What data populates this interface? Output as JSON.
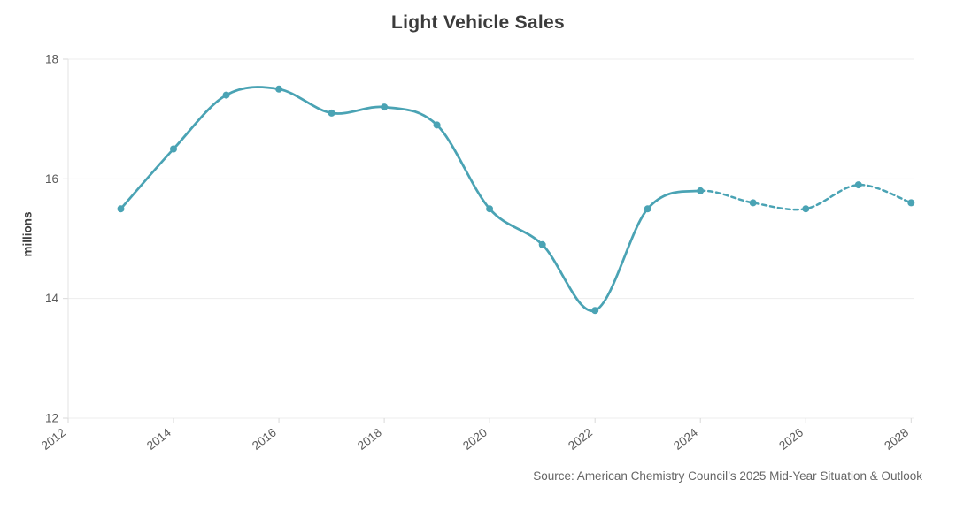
{
  "page": {
    "source_note": "Source: American Chemistry Council’s 2025 Mid-Year Situation & Outlook"
  },
  "colors": {
    "line": "#4AA3B4",
    "gridline": "#ededed",
    "axis": "#e3e3e3",
    "tick": "#d9d9d9",
    "tick_label": "#5a5a5a",
    "title_text": "#3b3b3b",
    "source_text": "#656565"
  },
  "chart_data": {
    "type": "line",
    "title": "Light Vehicle Sales",
    "xlabel": "",
    "ylabel": "millions",
    "x": [
      2013,
      2014,
      2015,
      2016,
      2017,
      2018,
      2019,
      2020,
      2021,
      2022,
      2023,
      2024,
      2025,
      2026,
      2027,
      2028
    ],
    "series": [
      {
        "name": "Light vehicle sales",
        "values": [
          15.5,
          16.5,
          17.4,
          17.5,
          17.1,
          17.2,
          16.9,
          15.5,
          14.9,
          13.8,
          15.5,
          15.8,
          15.6,
          15.5,
          15.9,
          15.6
        ],
        "solid_through_x": 2024,
        "forecast_x": [
          2025,
          2026,
          2027,
          2028
        ],
        "forecast_style": "dashed"
      }
    ],
    "xlim": [
      2012,
      2028
    ],
    "ylim": [
      12,
      18
    ],
    "x_ticks": [
      "2012",
      "2014",
      "2016",
      "2018",
      "2020",
      "2022",
      "2024",
      "2026",
      "2028"
    ],
    "y_ticks": [
      "12",
      "14",
      "16",
      "18"
    ],
    "grid": "horizontal-only",
    "legend_position": "none",
    "marker": "circle"
  }
}
